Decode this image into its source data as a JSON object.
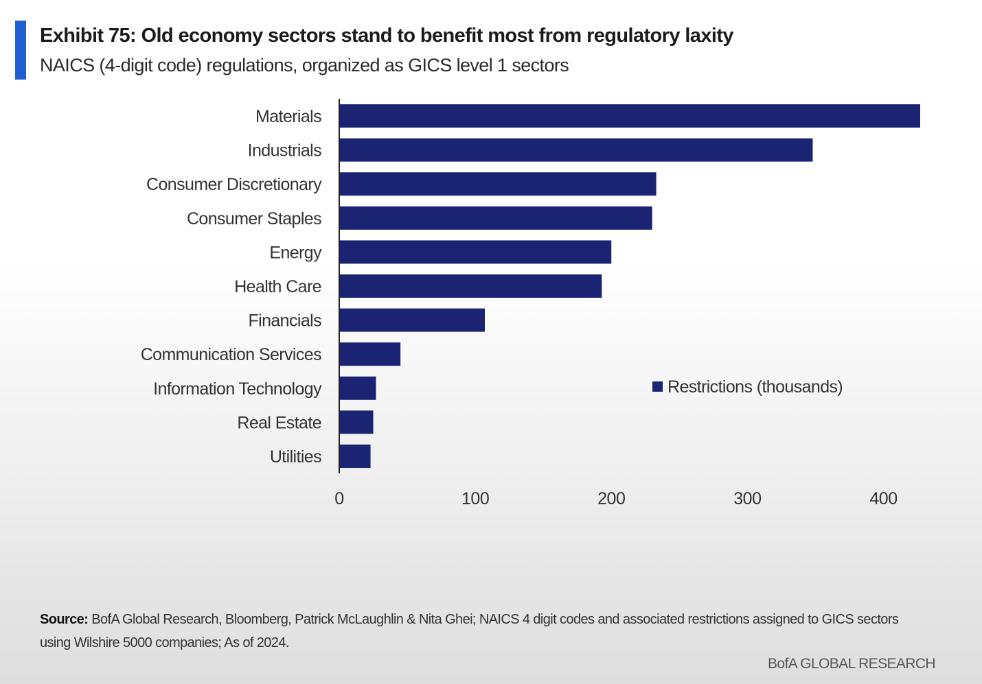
{
  "header": {
    "title": "Exhibit 75: Old economy sectors stand to benefit most from regulatory laxity",
    "subtitle": "NAICS (4-digit code) regulations, organized as GICS level 1 sectors"
  },
  "chart_data": {
    "type": "bar",
    "orientation": "horizontal",
    "categories": [
      "Materials",
      "Industrials",
      "Consumer Discretionary",
      "Consumer Staples",
      "Energy",
      "Health Care",
      "Financials",
      "Communication Services",
      "Information Technology",
      "Real Estate",
      "Utilities"
    ],
    "series": [
      {
        "name": "Restrictions (thousands)",
        "values": [
          427,
          348,
          233,
          230,
          200,
          193,
          107,
          45,
          27,
          25,
          23
        ]
      }
    ],
    "xlim": [
      0,
      427
    ],
    "xticks": [
      0,
      100,
      200,
      300,
      400
    ],
    "grid": false,
    "legend_position": "right",
    "bar_color": "#1a2473"
  },
  "footer": {
    "source_label": "Source:",
    "source_text": " BofA Global Research, Bloomberg, Patrick McLaughlin & Nita Ghei; NAICS 4 digit codes and associated restrictions assigned to GICS sectors using Wilshire 5000 companies; As of 2024.",
    "brand": "BofA GLOBAL RESEARCH"
  },
  "colors": {
    "accent": "#1f5fd1",
    "bar": "#1a2473"
  }
}
